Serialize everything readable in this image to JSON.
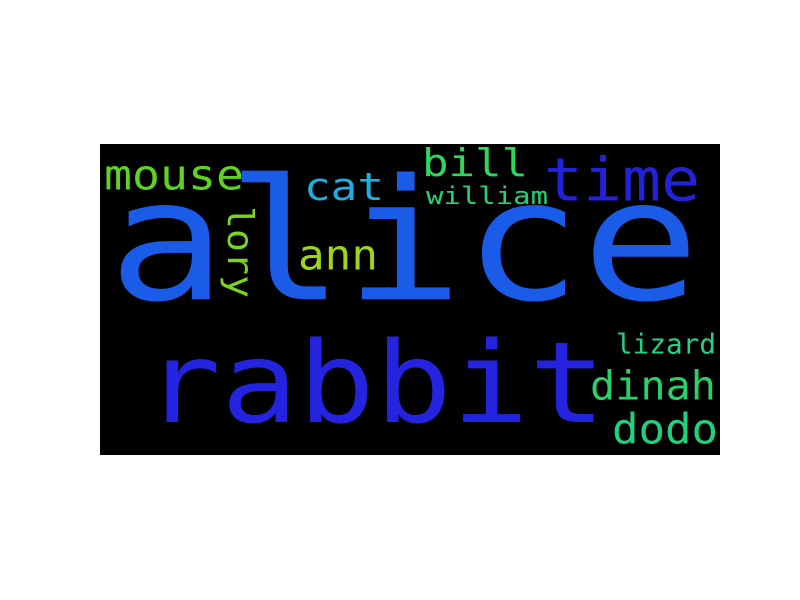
{
  "background": "#000000",
  "words": [
    {
      "key": "alice",
      "text": "alice",
      "color": "#1a5ce8"
    },
    {
      "key": "rabbit",
      "text": "rabbit",
      "color": "#2424e0"
    },
    {
      "key": "time",
      "text": "time",
      "color": "#2222d8"
    },
    {
      "key": "mouse",
      "text": "mouse",
      "color": "#5fd41f"
    },
    {
      "key": "cat",
      "text": "cat",
      "color": "#1eaee0"
    },
    {
      "key": "bill",
      "text": "bill",
      "color": "#2fd85a"
    },
    {
      "key": "william",
      "text": "william",
      "color": "#22d27a"
    },
    {
      "key": "lory",
      "text": "lory",
      "color": "#7ad51d"
    },
    {
      "key": "ann",
      "text": "ann",
      "color": "#9ed41a"
    },
    {
      "key": "lizard",
      "text": "lizard",
      "color": "#22d285"
    },
    {
      "key": "dinah",
      "text": "dinah",
      "color": "#28d26a"
    },
    {
      "key": "dodo",
      "text": "dodo",
      "color": "#1ed27e"
    }
  ]
}
